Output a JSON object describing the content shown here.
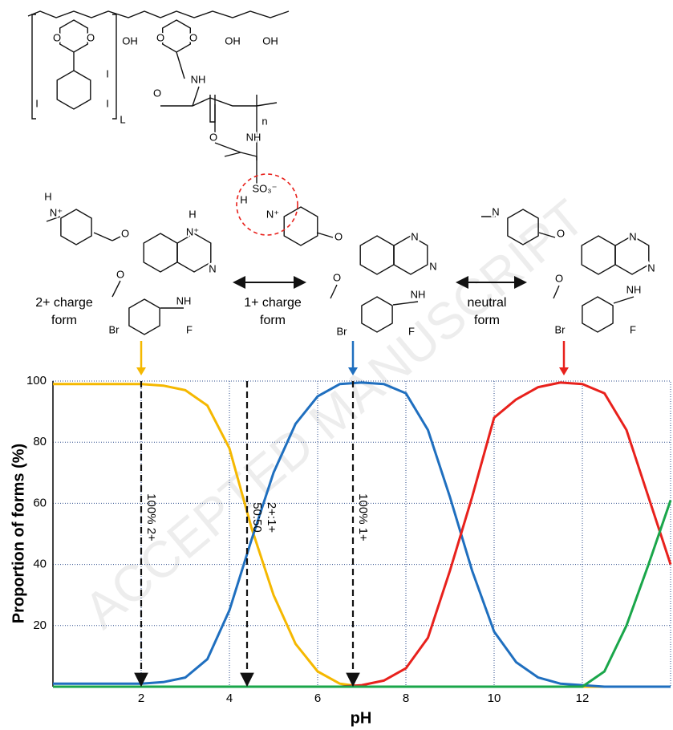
{
  "structure": {
    "labels": [
      "O",
      "O",
      "OH",
      "O",
      "O",
      "OH",
      "OH",
      "I",
      "I",
      "I",
      "L",
      "NH",
      "O",
      "n",
      "O",
      "NH",
      "SO₃⁻",
      "H",
      "N⁺",
      "H",
      "N⁺",
      "H",
      "N⁺",
      "N",
      "O",
      "O",
      "NH",
      "Br",
      "F",
      "O",
      "N",
      "N",
      "O",
      "NH",
      "Br",
      "F",
      "N",
      "O",
      "N",
      "N",
      "O",
      "NH",
      "Br",
      "F"
    ],
    "forms": [
      {
        "lines": [
          "2+ charge",
          "form"
        ]
      },
      {
        "lines": [
          "1+ charge",
          "form"
        ]
      },
      {
        "lines": [
          "neutral",
          "form"
        ]
      }
    ]
  },
  "watermark": "ACCEPTED MANUSCRIPT",
  "chart_data": {
    "type": "line",
    "xlabel": "pH",
    "ylabel": "Proportion of forms (%)",
    "x": [
      0,
      0.5,
      1,
      1.5,
      2,
      2.5,
      3,
      3.5,
      4,
      4.5,
      5,
      5.5,
      6,
      6.5,
      7,
      7.5,
      8,
      8.5,
      9,
      9.5,
      10,
      10.5,
      11,
      11.5,
      12,
      12.5,
      13,
      13.5,
      14
    ],
    "series": [
      {
        "color": "#f5b800",
        "values": [
          99,
          99,
          99,
          99,
          99,
          98.5,
          97,
          92,
          78,
          52,
          30,
          14,
          5,
          1,
          0,
          0,
          0,
          0,
          0,
          0,
          0,
          0,
          0,
          0,
          0,
          0,
          0,
          0,
          0
        ]
      },
      {
        "color": "#1f6fbf",
        "values": [
          1,
          1,
          1,
          1,
          1,
          1.5,
          3,
          9,
          25,
          48,
          70,
          86,
          95,
          99,
          99.5,
          99,
          96,
          84,
          62,
          38,
          18,
          8,
          3,
          1,
          0.5,
          0,
          0,
          0,
          0
        ]
      },
      {
        "color": "#e8211c",
        "values": [
          0,
          0,
          0,
          0,
          0,
          0,
          0,
          0,
          0,
          0,
          0,
          0,
          0,
          0,
          0.5,
          2,
          6,
          16,
          38,
          62,
          88,
          94,
          98,
          99.5,
          99,
          96,
          84,
          62,
          40
        ]
      },
      {
        "color": "#1aa64a",
        "values": [
          0,
          0,
          0,
          0,
          0,
          0,
          0,
          0,
          0,
          0,
          0,
          0,
          0,
          0,
          0,
          0,
          0,
          0,
          0,
          0,
          0,
          0,
          0,
          0,
          0,
          5,
          20,
          40,
          61
        ]
      }
    ],
    "xlim": [
      0,
      14
    ],
    "ylim": [
      0,
      100
    ],
    "xticks": [
      2,
      4,
      6,
      8,
      10,
      12
    ],
    "yticks": [
      20,
      40,
      60,
      80,
      100
    ],
    "grid": true,
    "annotations": [
      {
        "x": 2,
        "lines": [
          "100% 2+"
        ]
      },
      {
        "x": 4.4,
        "lines": [
          "50:50",
          "2+:1+"
        ]
      },
      {
        "x": 6.8,
        "lines": [
          "100% 1+"
        ]
      }
    ]
  }
}
